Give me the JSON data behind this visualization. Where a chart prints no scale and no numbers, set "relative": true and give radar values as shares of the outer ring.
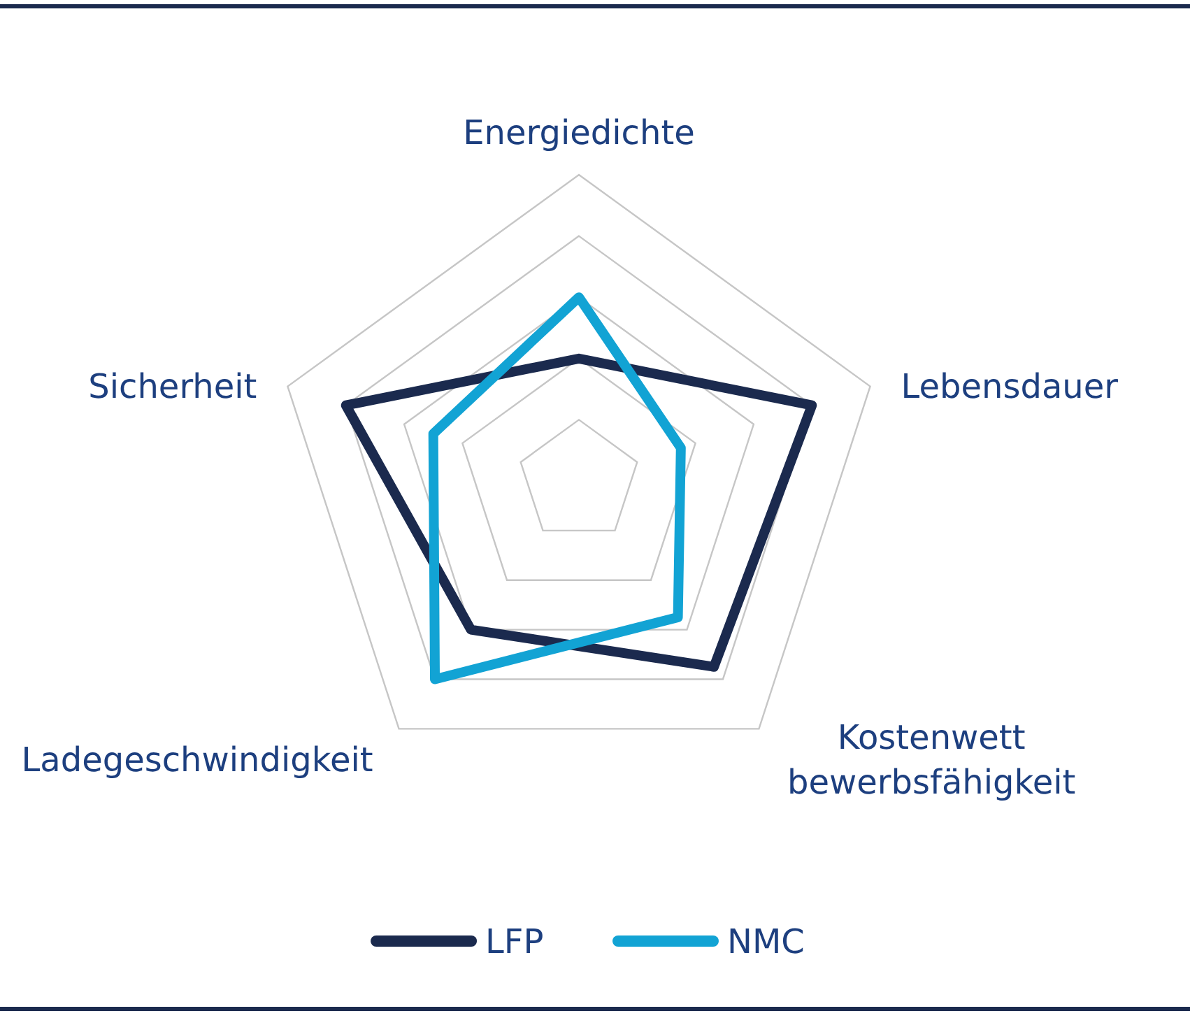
{
  "chart_data": {
    "type": "radar",
    "categories": [
      "Energiedichte",
      "Lebensdauer",
      "Kostenwett\nbewerbsfähigkeit",
      "Ladegeschwindigkeit",
      "Sicherheit"
    ],
    "relative": true,
    "grid": true,
    "legend": "bottom",
    "series": [
      {
        "name": "LFP",
        "color": "#1b2a4e",
        "values": [
          0.4,
          0.8,
          0.75,
          0.6,
          0.8
        ]
      },
      {
        "name": "NMC",
        "color": "#12a3d4",
        "values": [
          0.6,
          0.35,
          0.55,
          0.8,
          0.5
        ]
      }
    ]
  }
}
